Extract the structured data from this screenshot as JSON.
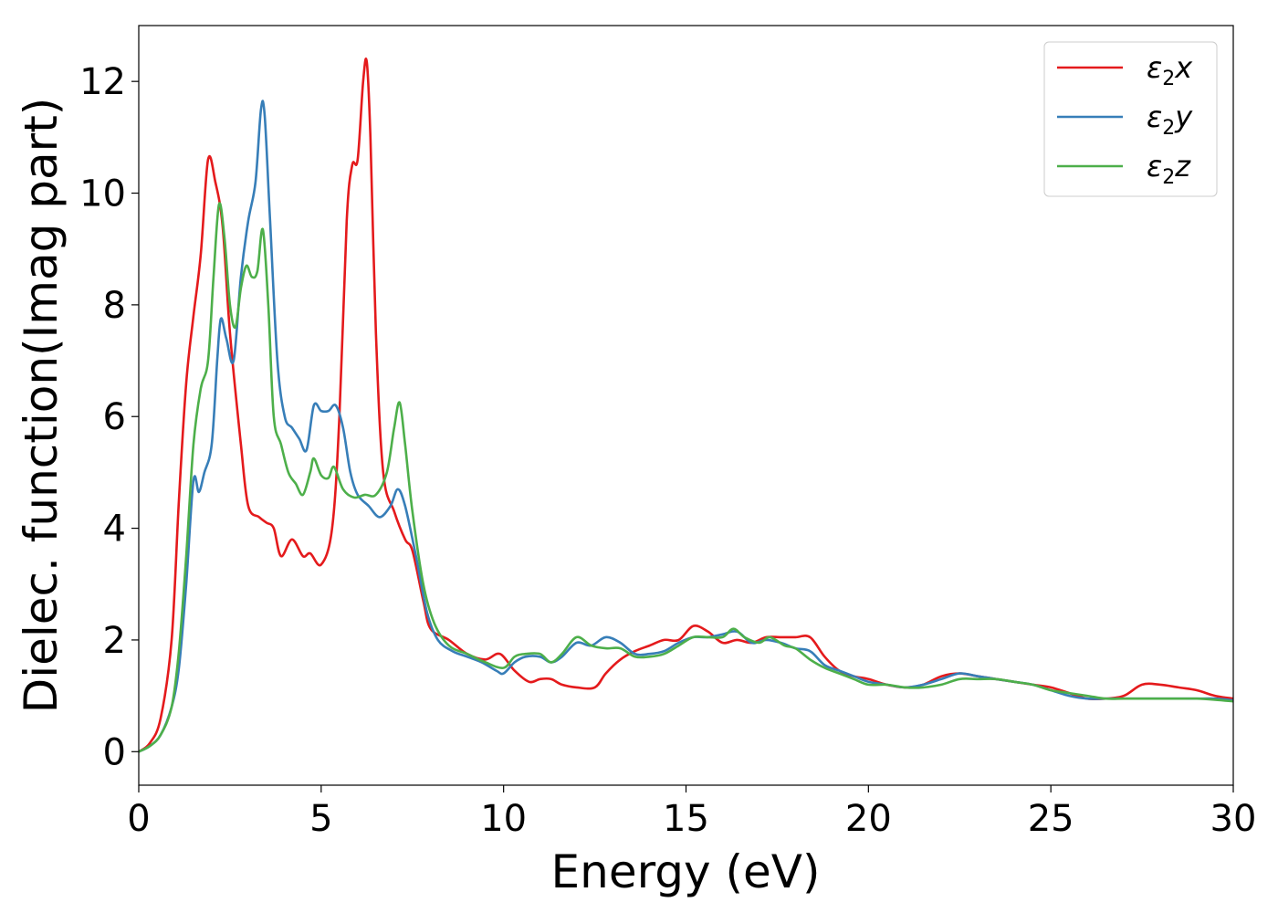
{
  "chart_data": {
    "type": "line",
    "xlabel": "Energy (eV)",
    "ylabel": "Dielec. function(Imag part)",
    "xlim": [
      0,
      30
    ],
    "ylim": [
      -0.6,
      13.0
    ],
    "xticks": [
      0,
      5,
      10,
      15,
      20,
      25,
      30
    ],
    "yticks": [
      0,
      2,
      4,
      6,
      8,
      10,
      12
    ],
    "grid": false,
    "legend_position": "top-right",
    "series": [
      {
        "name": "ε₂x",
        "legend_base": "ε",
        "legend_sub": "2",
        "legend_var": "x",
        "color": "#e41a1c",
        "points": [
          [
            0,
            0
          ],
          [
            0.3,
            0.15
          ],
          [
            0.6,
            0.6
          ],
          [
            0.9,
            2.0
          ],
          [
            1.1,
            4.5
          ],
          [
            1.3,
            6.6
          ],
          [
            1.5,
            7.8
          ],
          [
            1.7,
            8.9
          ],
          [
            1.9,
            10.6
          ],
          [
            2.1,
            10.2
          ],
          [
            2.3,
            9.4
          ],
          [
            2.5,
            7.5
          ],
          [
            2.8,
            5.5
          ],
          [
            3.0,
            4.4
          ],
          [
            3.3,
            4.2
          ],
          [
            3.5,
            4.1
          ],
          [
            3.7,
            4.0
          ],
          [
            3.9,
            3.5
          ],
          [
            4.2,
            3.8
          ],
          [
            4.5,
            3.5
          ],
          [
            4.7,
            3.55
          ],
          [
            5.0,
            3.35
          ],
          [
            5.3,
            4.0
          ],
          [
            5.5,
            6.0
          ],
          [
            5.7,
            9.5
          ],
          [
            5.85,
            10.5
          ],
          [
            6.0,
            10.6
          ],
          [
            6.15,
            12.0
          ],
          [
            6.25,
            12.35
          ],
          [
            6.35,
            11.0
          ],
          [
            6.5,
            7.5
          ],
          [
            6.7,
            5.0
          ],
          [
            7.0,
            4.3
          ],
          [
            7.3,
            3.8
          ],
          [
            7.5,
            3.6
          ],
          [
            7.8,
            2.7
          ],
          [
            8.0,
            2.2
          ],
          [
            8.5,
            2.0
          ],
          [
            9.0,
            1.75
          ],
          [
            9.5,
            1.65
          ],
          [
            9.9,
            1.75
          ],
          [
            10.3,
            1.45
          ],
          [
            10.7,
            1.25
          ],
          [
            11.0,
            1.3
          ],
          [
            11.3,
            1.3
          ],
          [
            11.6,
            1.2
          ],
          [
            12.0,
            1.15
          ],
          [
            12.5,
            1.15
          ],
          [
            12.8,
            1.4
          ],
          [
            13.2,
            1.65
          ],
          [
            13.6,
            1.8
          ],
          [
            14.0,
            1.9
          ],
          [
            14.4,
            2.0
          ],
          [
            14.8,
            2.0
          ],
          [
            15.2,
            2.25
          ],
          [
            15.6,
            2.15
          ],
          [
            16.0,
            1.95
          ],
          [
            16.4,
            2.0
          ],
          [
            16.8,
            1.95
          ],
          [
            17.2,
            2.05
          ],
          [
            17.6,
            2.05
          ],
          [
            18.0,
            2.05
          ],
          [
            18.4,
            2.05
          ],
          [
            18.8,
            1.7
          ],
          [
            19.2,
            1.45
          ],
          [
            19.6,
            1.35
          ],
          [
            20.0,
            1.3
          ],
          [
            20.5,
            1.2
          ],
          [
            21.0,
            1.15
          ],
          [
            21.5,
            1.2
          ],
          [
            22.0,
            1.35
          ],
          [
            22.5,
            1.4
          ],
          [
            23.0,
            1.35
          ],
          [
            23.5,
            1.3
          ],
          [
            24.0,
            1.25
          ],
          [
            24.5,
            1.2
          ],
          [
            25.0,
            1.15
          ],
          [
            25.5,
            1.05
          ],
          [
            26.0,
            0.95
          ],
          [
            26.5,
            0.95
          ],
          [
            27.0,
            1.0
          ],
          [
            27.5,
            1.2
          ],
          [
            28.0,
            1.2
          ],
          [
            28.5,
            1.15
          ],
          [
            29.0,
            1.1
          ],
          [
            29.5,
            1.0
          ],
          [
            30.0,
            0.95
          ]
        ]
      },
      {
        "name": "ε₂y",
        "legend_base": "ε",
        "legend_sub": "2",
        "legend_var": "y",
        "color": "#377eb8",
        "points": [
          [
            0,
            0
          ],
          [
            0.3,
            0.1
          ],
          [
            0.6,
            0.3
          ],
          [
            0.9,
            0.8
          ],
          [
            1.1,
            1.5
          ],
          [
            1.3,
            3.0
          ],
          [
            1.5,
            4.85
          ],
          [
            1.65,
            4.65
          ],
          [
            1.8,
            5.0
          ],
          [
            2.0,
            5.5
          ],
          [
            2.15,
            7.0
          ],
          [
            2.25,
            7.75
          ],
          [
            2.4,
            7.4
          ],
          [
            2.6,
            7.0
          ],
          [
            2.8,
            8.5
          ],
          [
            3.0,
            9.5
          ],
          [
            3.2,
            10.2
          ],
          [
            3.35,
            11.5
          ],
          [
            3.45,
            11.4
          ],
          [
            3.6,
            9.5
          ],
          [
            3.8,
            7.0
          ],
          [
            4.0,
            6.0
          ],
          [
            4.2,
            5.8
          ],
          [
            4.4,
            5.6
          ],
          [
            4.6,
            5.4
          ],
          [
            4.8,
            6.2
          ],
          [
            5.0,
            6.1
          ],
          [
            5.2,
            6.1
          ],
          [
            5.4,
            6.2
          ],
          [
            5.6,
            5.8
          ],
          [
            5.8,
            5.0
          ],
          [
            6.0,
            4.6
          ],
          [
            6.3,
            4.4
          ],
          [
            6.6,
            4.2
          ],
          [
            6.9,
            4.4
          ],
          [
            7.1,
            4.7
          ],
          [
            7.3,
            4.4
          ],
          [
            7.6,
            3.5
          ],
          [
            7.9,
            2.5
          ],
          [
            8.2,
            2.0
          ],
          [
            8.6,
            1.8
          ],
          [
            9.0,
            1.7
          ],
          [
            9.4,
            1.6
          ],
          [
            9.8,
            1.45
          ],
          [
            10.0,
            1.4
          ],
          [
            10.3,
            1.6
          ],
          [
            10.6,
            1.7
          ],
          [
            11.0,
            1.7
          ],
          [
            11.3,
            1.6
          ],
          [
            11.6,
            1.7
          ],
          [
            12.0,
            1.95
          ],
          [
            12.4,
            1.9
          ],
          [
            12.8,
            2.05
          ],
          [
            13.2,
            1.95
          ],
          [
            13.6,
            1.75
          ],
          [
            14.0,
            1.75
          ],
          [
            14.4,
            1.8
          ],
          [
            14.8,
            1.95
          ],
          [
            15.2,
            2.05
          ],
          [
            15.6,
            2.05
          ],
          [
            16.0,
            2.1
          ],
          [
            16.4,
            2.15
          ],
          [
            16.8,
            1.95
          ],
          [
            17.2,
            2.0
          ],
          [
            17.6,
            1.95
          ],
          [
            18.0,
            1.85
          ],
          [
            18.4,
            1.8
          ],
          [
            18.8,
            1.55
          ],
          [
            19.2,
            1.45
          ],
          [
            19.6,
            1.35
          ],
          [
            20.0,
            1.25
          ],
          [
            20.5,
            1.2
          ],
          [
            21.0,
            1.15
          ],
          [
            21.5,
            1.2
          ],
          [
            22.0,
            1.3
          ],
          [
            22.5,
            1.4
          ],
          [
            23.0,
            1.35
          ],
          [
            23.5,
            1.3
          ],
          [
            24.0,
            1.25
          ],
          [
            24.5,
            1.2
          ],
          [
            25.0,
            1.1
          ],
          [
            25.5,
            1.0
          ],
          [
            26.0,
            0.95
          ],
          [
            26.5,
            0.95
          ],
          [
            27.0,
            0.95
          ],
          [
            27.5,
            0.95
          ],
          [
            28.0,
            0.95
          ],
          [
            28.5,
            0.95
          ],
          [
            29.0,
            0.95
          ],
          [
            29.5,
            0.95
          ],
          [
            30.0,
            0.92
          ]
        ]
      },
      {
        "name": "ε₂z",
        "legend_base": "ε",
        "legend_sub": "2",
        "legend_var": "z",
        "color": "#4daf4a",
        "points": [
          [
            0,
            0
          ],
          [
            0.3,
            0.1
          ],
          [
            0.6,
            0.3
          ],
          [
            0.9,
            0.8
          ],
          [
            1.1,
            1.8
          ],
          [
            1.3,
            3.5
          ],
          [
            1.5,
            5.5
          ],
          [
            1.7,
            6.5
          ],
          [
            1.9,
            7.0
          ],
          [
            2.05,
            8.5
          ],
          [
            2.2,
            9.8
          ],
          [
            2.35,
            9.2
          ],
          [
            2.5,
            8.0
          ],
          [
            2.65,
            7.6
          ],
          [
            2.8,
            8.3
          ],
          [
            2.95,
            8.7
          ],
          [
            3.1,
            8.5
          ],
          [
            3.25,
            8.6
          ],
          [
            3.4,
            9.35
          ],
          [
            3.55,
            8.0
          ],
          [
            3.7,
            6.0
          ],
          [
            3.9,
            5.5
          ],
          [
            4.1,
            5.0
          ],
          [
            4.3,
            4.8
          ],
          [
            4.5,
            4.6
          ],
          [
            4.7,
            5.0
          ],
          [
            4.8,
            5.25
          ],
          [
            5.0,
            4.95
          ],
          [
            5.2,
            4.9
          ],
          [
            5.35,
            5.1
          ],
          [
            5.6,
            4.7
          ],
          [
            5.9,
            4.55
          ],
          [
            6.2,
            4.6
          ],
          [
            6.5,
            4.6
          ],
          [
            6.8,
            5.0
          ],
          [
            7.0,
            5.8
          ],
          [
            7.15,
            6.25
          ],
          [
            7.3,
            5.5
          ],
          [
            7.5,
            4.3
          ],
          [
            7.8,
            3.0
          ],
          [
            8.1,
            2.3
          ],
          [
            8.5,
            1.9
          ],
          [
            9.0,
            1.75
          ],
          [
            9.5,
            1.6
          ],
          [
            10.0,
            1.5
          ],
          [
            10.3,
            1.7
          ],
          [
            10.6,
            1.75
          ],
          [
            11.0,
            1.75
          ],
          [
            11.3,
            1.6
          ],
          [
            11.6,
            1.75
          ],
          [
            12.0,
            2.05
          ],
          [
            12.4,
            1.9
          ],
          [
            12.8,
            1.85
          ],
          [
            13.2,
            1.85
          ],
          [
            13.6,
            1.7
          ],
          [
            14.0,
            1.7
          ],
          [
            14.4,
            1.75
          ],
          [
            14.8,
            1.9
          ],
          [
            15.2,
            2.05
          ],
          [
            15.6,
            2.05
          ],
          [
            16.0,
            2.05
          ],
          [
            16.3,
            2.2
          ],
          [
            16.6,
            2.05
          ],
          [
            17.0,
            1.95
          ],
          [
            17.3,
            2.05
          ],
          [
            17.7,
            1.9
          ],
          [
            18.0,
            1.85
          ],
          [
            18.4,
            1.65
          ],
          [
            18.8,
            1.5
          ],
          [
            19.2,
            1.4
          ],
          [
            19.6,
            1.3
          ],
          [
            20.0,
            1.2
          ],
          [
            20.5,
            1.2
          ],
          [
            21.0,
            1.15
          ],
          [
            21.5,
            1.15
          ],
          [
            22.0,
            1.2
          ],
          [
            22.5,
            1.3
          ],
          [
            23.0,
            1.3
          ],
          [
            23.5,
            1.3
          ],
          [
            24.0,
            1.25
          ],
          [
            24.5,
            1.2
          ],
          [
            25.0,
            1.1
          ],
          [
            25.5,
            1.05
          ],
          [
            26.0,
            1.0
          ],
          [
            26.5,
            0.95
          ],
          [
            27.0,
            0.95
          ],
          [
            27.5,
            0.95
          ],
          [
            28.0,
            0.95
          ],
          [
            28.5,
            0.95
          ],
          [
            29.0,
            0.95
          ],
          [
            29.5,
            0.93
          ],
          [
            30.0,
            0.9
          ]
        ]
      }
    ]
  }
}
